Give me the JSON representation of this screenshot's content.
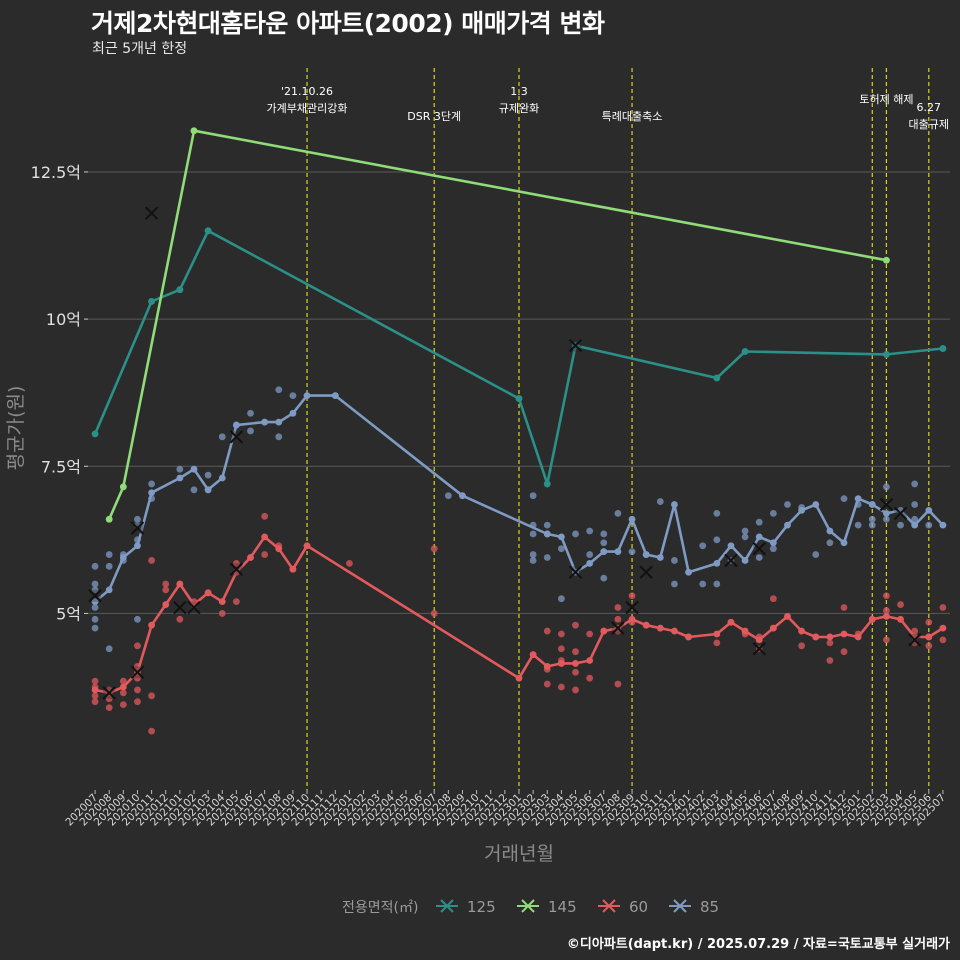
{
  "title": "거제2차현대홈타운 아파트(2002) 매매가격 변화",
  "subtitle": "최근 5개년 한정",
  "caption": "©디아파트(dapt.kr) / 2025.07.29 / 자료=국토교통부 실거래가",
  "chart_data": {
    "type": "line",
    "xlabel": "거래년월",
    "ylabel": "평균가(원)",
    "ylim": [
      2.0,
      14.3
    ],
    "yticks": [
      5,
      7.5,
      10,
      12.5
    ],
    "ytick_labels": [
      "5억",
      "7.5억",
      "10억",
      "12.5억"
    ],
    "x_start": "202007",
    "x_end": "202507",
    "grid": true,
    "legend_title": "전용면적(㎡)",
    "legend_position": "bottom",
    "events": [
      {
        "x": "202110",
        "lines": [
          "'21.10.26",
          "가계부채관리강화"
        ]
      },
      {
        "x": "202207",
        "lines": [
          "DSR 3단계"
        ]
      },
      {
        "x": "202301",
        "lines": [
          "1.3",
          "규제완화"
        ]
      },
      {
        "x": "202309",
        "lines": [
          "특례대출축소"
        ]
      },
      {
        "x": "202502",
        "lines": []
      },
      {
        "x": "202503",
        "lines": [
          "토허제 해제"
        ]
      },
      {
        "x": "202506",
        "lines": [
          "6.27",
          "대출규제"
        ]
      }
    ],
    "series": [
      {
        "name": "125",
        "color": "#2a9088",
        "x": [
          "202007",
          "202011",
          "202101",
          "202103",
          "202301",
          "202303",
          "202305",
          "202403",
          "202405",
          "202503",
          "202507"
        ],
        "y": [
          8.05,
          10.3,
          10.5,
          11.5,
          8.65,
          7.2,
          9.55,
          9.0,
          9.45,
          9.4,
          9.5
        ],
        "points": [
          [
            "202007",
            8.05
          ],
          [
            "202011",
            10.3
          ],
          [
            "202101",
            10.5
          ],
          [
            "202103",
            11.5
          ],
          [
            "202301",
            8.65
          ],
          [
            "202303",
            7.2
          ],
          [
            "202305",
            9.55
          ],
          [
            "202403",
            9.0
          ],
          [
            "202405",
            9.45
          ],
          [
            "202503",
            9.4
          ],
          [
            "202507",
            9.5
          ]
        ],
        "cancels": [
          [
            "202011",
            11.8
          ],
          [
            "202305",
            9.55
          ]
        ]
      },
      {
        "name": "145",
        "color": "#8fdc78",
        "x": [
          "202008",
          "202009",
          "202102",
          "202503"
        ],
        "y": [
          6.6,
          7.15,
          13.2,
          11.0
        ],
        "points": [
          [
            "202008",
            6.6
          ],
          [
            "202009",
            7.15
          ],
          [
            "202102",
            13.2
          ],
          [
            "202503",
            11.0
          ]
        ],
        "cancels": []
      },
      {
        "name": "60",
        "color": "#e35a5e",
        "x": [
          "202007",
          "202008",
          "202009",
          "202010",
          "202011",
          "202012",
          "202101",
          "202102",
          "202103",
          "202104",
          "202105",
          "202106",
          "202107",
          "202108",
          "202109",
          "202110",
          "202301",
          "202302",
          "202303",
          "202304",
          "202305",
          "202306",
          "202307",
          "202308",
          "202309",
          "202310",
          "202311",
          "202312",
          "202401",
          "202403",
          "202404",
          "202405",
          "202406",
          "202407",
          "202408",
          "202409",
          "202410",
          "202411",
          "202412",
          "202501",
          "202502",
          "202503",
          "202504",
          "202505",
          "202506",
          "202507"
        ],
        "y": [
          3.7,
          3.65,
          3.75,
          4.0,
          4.8,
          5.15,
          5.5,
          5.15,
          5.35,
          5.2,
          5.7,
          5.95,
          6.3,
          6.1,
          5.75,
          6.15,
          3.9,
          4.3,
          4.1,
          4.15,
          4.15,
          4.2,
          4.7,
          4.75,
          4.9,
          4.8,
          4.75,
          4.7,
          4.6,
          4.65,
          4.85,
          4.7,
          4.55,
          4.75,
          4.95,
          4.7,
          4.6,
          4.6,
          4.65,
          4.6,
          4.9,
          4.95,
          4.9,
          4.6,
          4.6,
          4.75
        ],
        "points": [
          [
            "202007",
            3.85
          ],
          [
            "202007",
            3.75
          ],
          [
            "202007",
            3.6
          ],
          [
            "202007",
            3.5
          ],
          [
            "202008",
            3.7
          ],
          [
            "202008",
            3.55
          ],
          [
            "202008",
            3.4
          ],
          [
            "202009",
            3.85
          ],
          [
            "202009",
            3.65
          ],
          [
            "202009",
            3.45
          ],
          [
            "202010",
            4.45
          ],
          [
            "202010",
            4.1
          ],
          [
            "202010",
            3.9
          ],
          [
            "202010",
            3.7
          ],
          [
            "202010",
            3.5
          ],
          [
            "202011",
            5.9
          ],
          [
            "202011",
            3.6
          ],
          [
            "202011",
            3.0
          ],
          [
            "202012",
            5.5
          ],
          [
            "202012",
            5.4
          ],
          [
            "202101",
            5.5
          ],
          [
            "202101",
            4.9
          ],
          [
            "202102",
            5.2
          ],
          [
            "202103",
            5.35
          ],
          [
            "202104",
            5.0
          ],
          [
            "202105",
            5.85
          ],
          [
            "202105",
            5.2
          ],
          [
            "202106",
            5.95
          ],
          [
            "202107",
            6.65
          ],
          [
            "202107",
            6.0
          ],
          [
            "202108",
            6.15
          ],
          [
            "202109",
            5.75
          ],
          [
            "202110",
            6.15
          ],
          [
            "202113",
            5.85
          ],
          [
            "202207",
            6.1
          ],
          [
            "202207",
            5.0
          ],
          [
            "202302",
            4.3
          ],
          [
            "202303",
            4.7
          ],
          [
            "202303",
            4.05
          ],
          [
            "202303",
            3.8
          ],
          [
            "202304",
            4.65
          ],
          [
            "202304",
            4.2
          ],
          [
            "202304",
            3.75
          ],
          [
            "202304",
            4.4
          ],
          [
            "202305",
            4.8
          ],
          [
            "202305",
            4.35
          ],
          [
            "202305",
            4.0
          ],
          [
            "202305",
            3.7
          ],
          [
            "202306",
            4.65
          ],
          [
            "202306",
            3.9
          ],
          [
            "202307",
            4.7
          ],
          [
            "202308",
            5.1
          ],
          [
            "202308",
            4.9
          ],
          [
            "202308",
            4.7
          ],
          [
            "202308",
            3.8
          ],
          [
            "202309",
            5.3
          ],
          [
            "202309",
            4.85
          ],
          [
            "202310",
            4.8
          ],
          [
            "202311",
            4.75
          ],
          [
            "202401",
            4.6
          ],
          [
            "202403",
            4.5
          ],
          [
            "202404",
            4.85
          ],
          [
            "202405",
            4.65
          ],
          [
            "202406",
            4.4
          ],
          [
            "202406",
            4.6
          ],
          [
            "202407",
            5.25
          ],
          [
            "202407",
            4.75
          ],
          [
            "202408",
            4.95
          ],
          [
            "202409",
            4.45
          ],
          [
            "202410",
            4.6
          ],
          [
            "202411",
            4.2
          ],
          [
            "202411",
            4.5
          ],
          [
            "202412",
            5.1
          ],
          [
            "202412",
            4.35
          ],
          [
            "202501",
            4.65
          ],
          [
            "202502",
            4.9
          ],
          [
            "202503",
            5.3
          ],
          [
            "202503",
            5.05
          ],
          [
            "202503",
            4.55
          ],
          [
            "202504",
            5.15
          ],
          [
            "202505",
            4.7
          ],
          [
            "202505",
            4.5
          ],
          [
            "202506",
            4.85
          ],
          [
            "202506",
            4.6
          ],
          [
            "202506",
            4.45
          ],
          [
            "202507",
            5.1
          ],
          [
            "202507",
            4.55
          ]
        ],
        "cancels": [
          [
            "202008",
            3.65
          ],
          [
            "202010",
            4.0
          ],
          [
            "202102",
            5.1
          ],
          [
            "202105",
            5.75
          ],
          [
            "202308",
            4.75
          ],
          [
            "202309",
            5.1
          ],
          [
            "202406",
            4.4
          ],
          [
            "202504",
            6.7
          ],
          [
            "202505",
            4.55
          ]
        ]
      },
      {
        "name": "85",
        "color": "#7f9bc4",
        "x": [
          "202007",
          "202008",
          "202009",
          "202010",
          "202011",
          "202101",
          "202102",
          "202103",
          "202104",
          "202105",
          "202107",
          "202108",
          "202109",
          "202110",
          "202112",
          "202209",
          "202303",
          "202304",
          "202305",
          "202306",
          "202307",
          "202308",
          "202309",
          "202310",
          "202311",
          "202312",
          "202401",
          "202403",
          "202404",
          "202405",
          "202406",
          "202407",
          "202408",
          "202409",
          "202410",
          "202411",
          "202412",
          "202501",
          "202502",
          "202503",
          "202504",
          "202505",
          "202506",
          "202507"
        ],
        "y": [
          5.2,
          5.4,
          5.95,
          6.15,
          7.05,
          7.3,
          7.45,
          7.1,
          7.3,
          8.2,
          8.25,
          8.25,
          8.4,
          8.7,
          8.7,
          7.0,
          6.35,
          6.3,
          5.7,
          5.85,
          6.05,
          6.05,
          6.6,
          6.0,
          5.95,
          6.85,
          5.7,
          5.85,
          6.15,
          5.9,
          6.3,
          6.2,
          6.5,
          6.75,
          6.85,
          6.4,
          6.2,
          6.95,
          6.85,
          6.7,
          6.75,
          6.5,
          6.75,
          6.5
        ],
        "points": [
          [
            "202007",
            5.8
          ],
          [
            "202007",
            5.5
          ],
          [
            "202007",
            5.4
          ],
          [
            "202007",
            5.1
          ],
          [
            "202007",
            4.9
          ],
          [
            "202007",
            4.75
          ],
          [
            "202008",
            6.0
          ],
          [
            "202008",
            5.8
          ],
          [
            "202008",
            4.4
          ],
          [
            "202009",
            6.0
          ],
          [
            "202009",
            5.9
          ],
          [
            "202010",
            6.6
          ],
          [
            "202010",
            6.5
          ],
          [
            "202010",
            6.25
          ],
          [
            "202010",
            4.9
          ],
          [
            "202011",
            7.2
          ],
          [
            "202011",
            6.95
          ],
          [
            "202101",
            7.45
          ],
          [
            "202102",
            7.1
          ],
          [
            "202103",
            7.1
          ],
          [
            "202103",
            7.35
          ],
          [
            "202104",
            8.0
          ],
          [
            "202105",
            8.2
          ],
          [
            "202106",
            8.4
          ],
          [
            "202106",
            8.1
          ],
          [
            "202107",
            8.25
          ],
          [
            "202108",
            8.8
          ],
          [
            "202108",
            8.0
          ],
          [
            "202109",
            8.7
          ],
          [
            "202112",
            8.7
          ],
          [
            "202208",
            7.0
          ],
          [
            "202302",
            6.5
          ],
          [
            "202302",
            6.35
          ],
          [
            "202302",
            7.0
          ],
          [
            "202302",
            6.0
          ],
          [
            "202302",
            5.9
          ],
          [
            "202303",
            6.5
          ],
          [
            "202303",
            6.35
          ],
          [
            "202303",
            5.95
          ],
          [
            "202304",
            5.25
          ],
          [
            "202304",
            6.1
          ],
          [
            "202305",
            6.35
          ],
          [
            "202305",
            5.7
          ],
          [
            "202306",
            6.4
          ],
          [
            "202306",
            6.0
          ],
          [
            "202307",
            6.35
          ],
          [
            "202307",
            6.2
          ],
          [
            "202307",
            6.05
          ],
          [
            "202307",
            5.6
          ],
          [
            "202308",
            6.7
          ],
          [
            "202309",
            6.05
          ],
          [
            "202310",
            6.0
          ],
          [
            "202311",
            6.9
          ],
          [
            "202312",
            5.9
          ],
          [
            "202312",
            5.5
          ],
          [
            "202402",
            6.15
          ],
          [
            "202402",
            5.5
          ],
          [
            "202403",
            6.7
          ],
          [
            "202403",
            6.25
          ],
          [
            "202403",
            5.5
          ],
          [
            "202404",
            5.9
          ],
          [
            "202405",
            6.4
          ],
          [
            "202405",
            6.3
          ],
          [
            "202406",
            6.55
          ],
          [
            "202406",
            5.95
          ],
          [
            "202407",
            6.7
          ],
          [
            "202407",
            6.1
          ],
          [
            "202408",
            6.85
          ],
          [
            "202409",
            6.8
          ],
          [
            "202410",
            6.0
          ],
          [
            "202411",
            6.2
          ],
          [
            "202412",
            6.95
          ],
          [
            "202501",
            6.85
          ],
          [
            "202501",
            6.5
          ],
          [
            "202502",
            6.85
          ],
          [
            "202502",
            6.6
          ],
          [
            "202502",
            6.5
          ],
          [
            "202503",
            7.15
          ],
          [
            "202503",
            6.6
          ],
          [
            "202504",
            6.5
          ],
          [
            "202505",
            7.2
          ],
          [
            "202505",
            6.85
          ],
          [
            "202505",
            6.6
          ],
          [
            "202506",
            6.5
          ]
        ],
        "cancels": [
          [
            "202007",
            5.3
          ],
          [
            "202010",
            6.45
          ],
          [
            "202101",
            5.1
          ],
          [
            "202105",
            8.0
          ],
          [
            "202305",
            5.7
          ],
          [
            "202310",
            5.7
          ],
          [
            "202404",
            5.9
          ],
          [
            "202406",
            6.1
          ],
          [
            "202503",
            6.85
          ]
        ]
      }
    ]
  }
}
